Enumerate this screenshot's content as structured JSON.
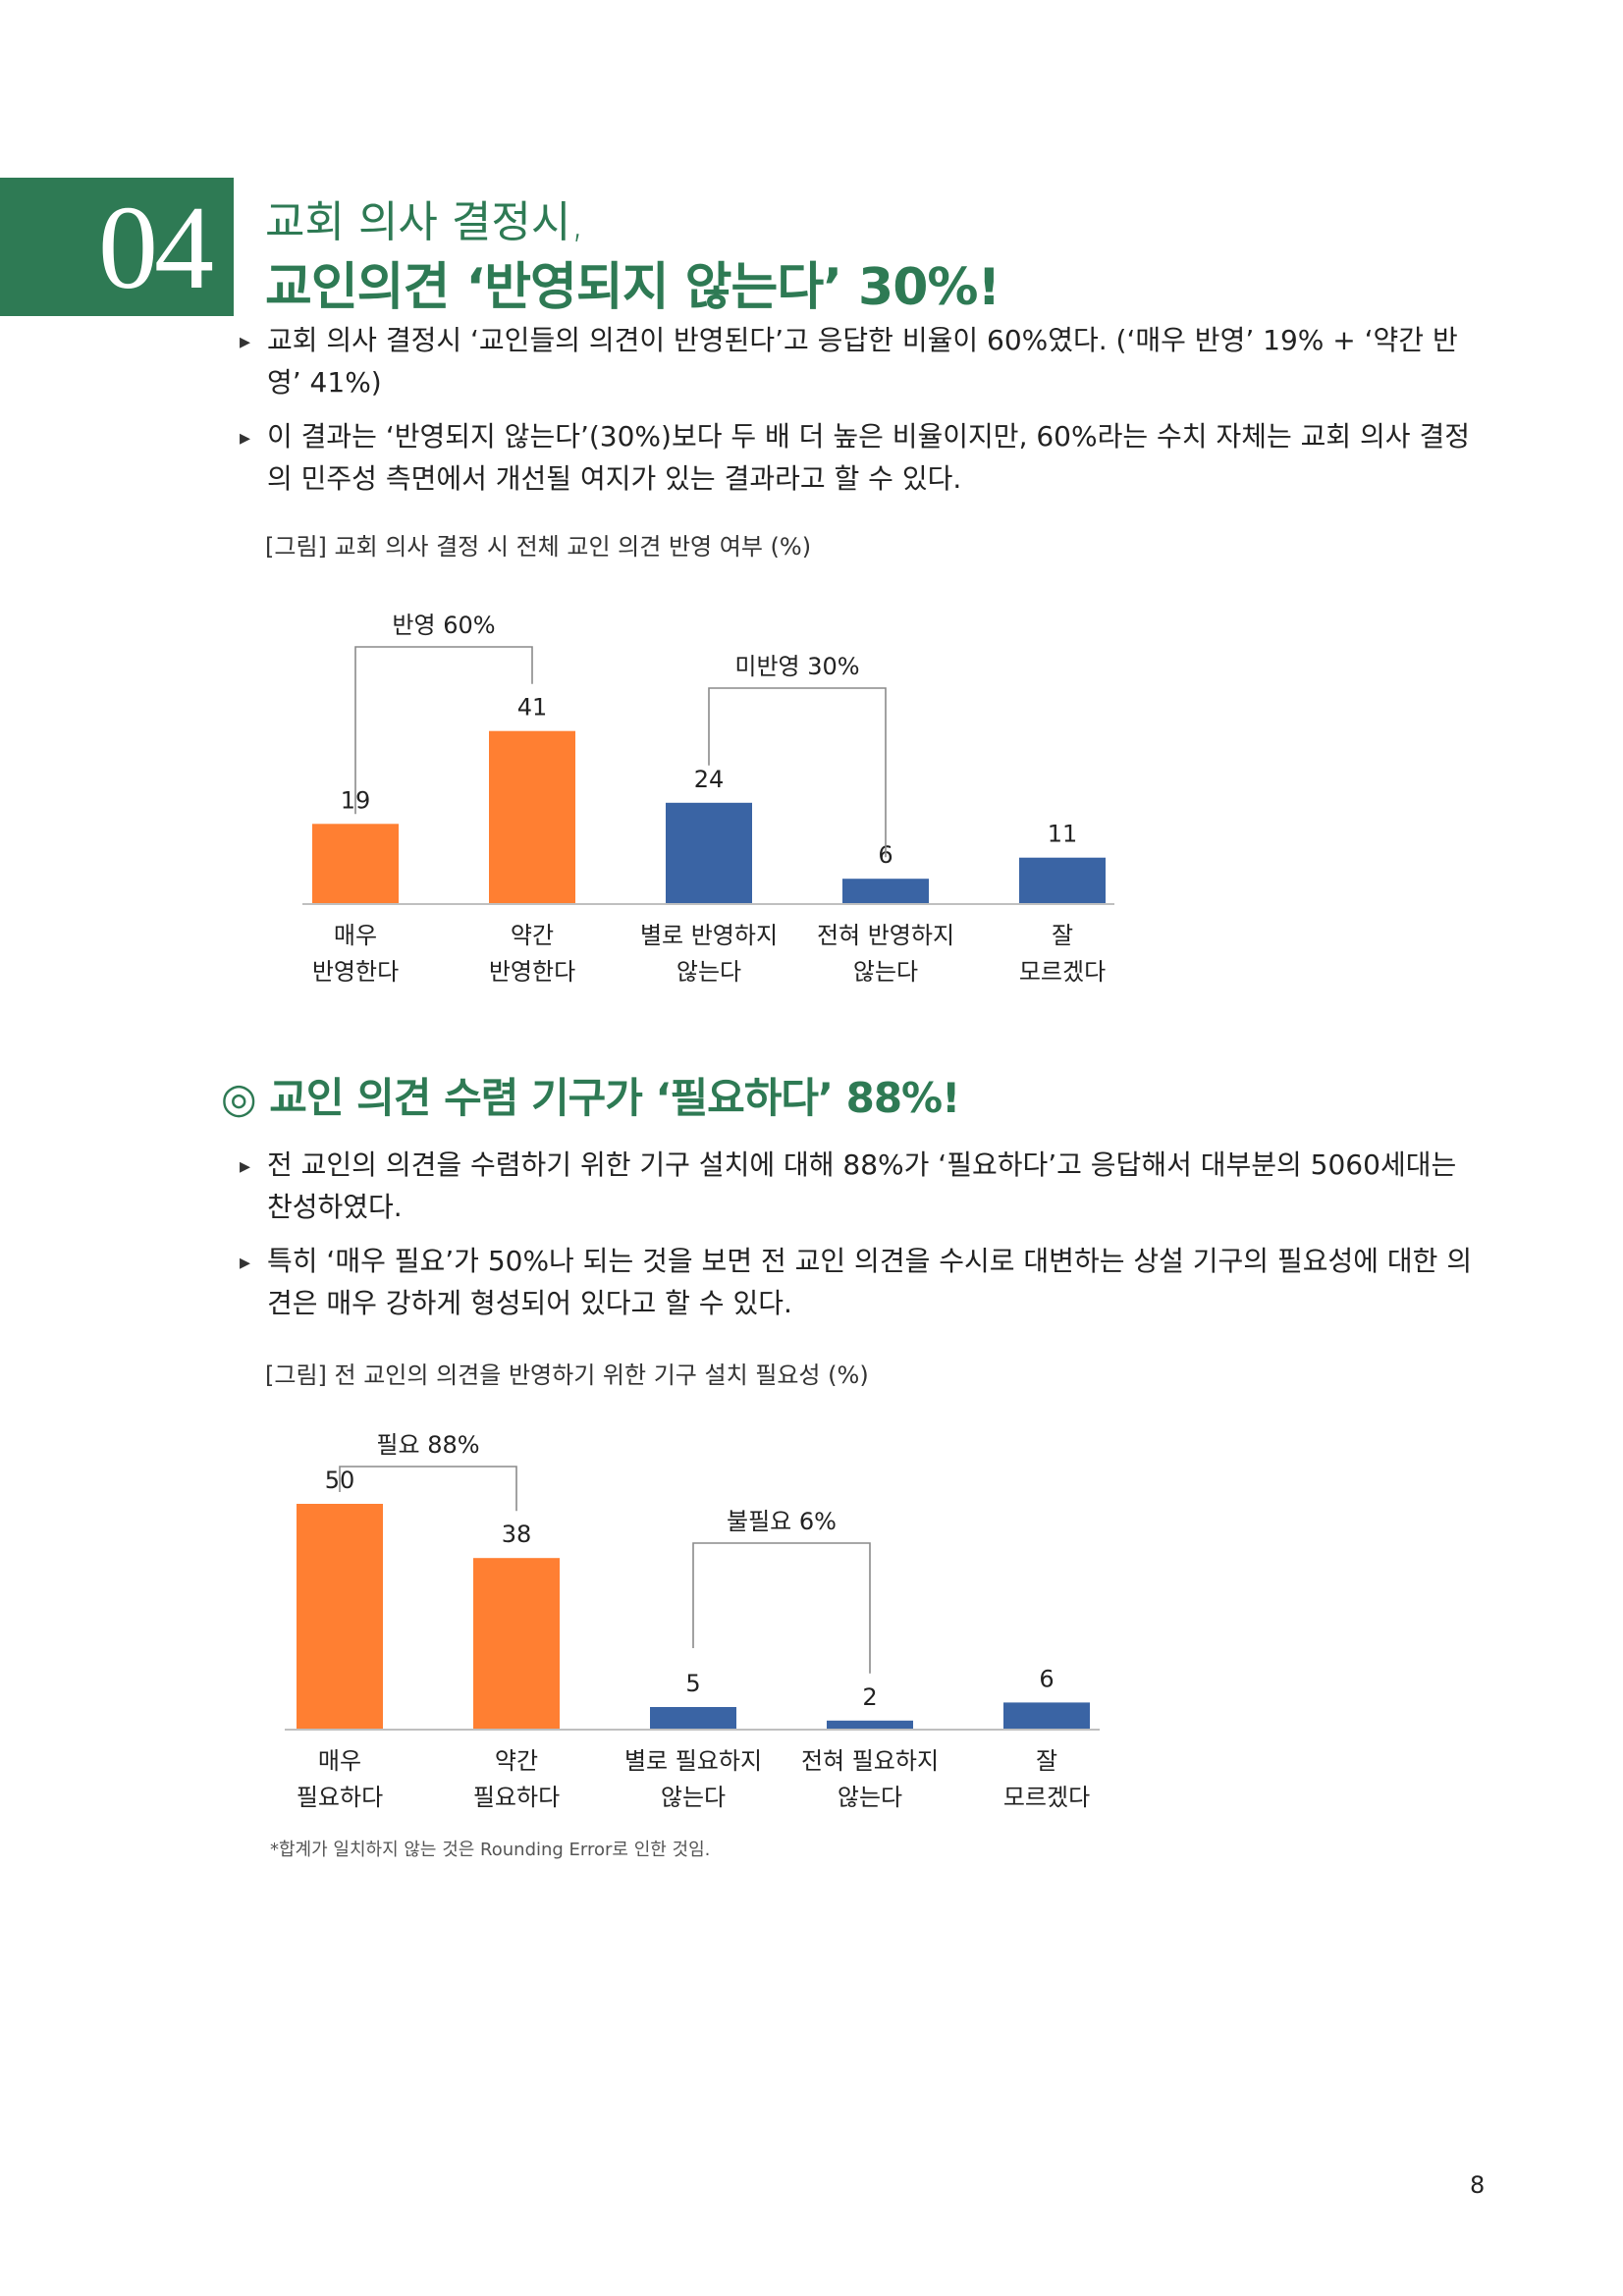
{
  "section": {
    "number": "04",
    "title_line1": "교회 의사 결정시,",
    "title_line2": "교인의견 ‘반영되지 않는다’ 30%!"
  },
  "para1": [
    "교회 의사 결정시 ‘교인들의 의견이 반영된다’고 응답한 비율이 60%였다. (‘매우 반영’ 19% + ‘약간 반영’ 41%)",
    "이 결과는 ‘반영되지 않는다’(30%)보다 두 배 더 높은 비율이지만, 60%라는 수치 자체는 교회 의사 결정의 민주성 측면에서 개선될 여지가 있는 결과라고 할 수 있다."
  ],
  "subheading": "◎ 교인 의견 수렴 기구가 ‘필요하다’ 88%!",
  "para2": [
    "전 교인의 의견을 수렴하기 위한 기구 설치에 대해 88%가 ‘필요하다’고 응답해서 대부분의 5060세대는 찬성하였다.",
    "특히 ‘매우 필요’가 50%나 되는 것을 보면 전 교인 의견을 수시로 대변하는 상설 기구의 필요성에 대한 의견은 매우 강하게 형성되어 있다고 할 수 있다."
  ],
  "bullet_glyph": "▸",
  "footnote": "*합계가 일치하지 않는 것은 Rounding Error로 인한 것임.",
  "page_number": "8",
  "colors": {
    "orange": "#ff7f32",
    "blue": "#3a64a4",
    "green": "#2e7a54"
  },
  "chart_data": [
    {
      "type": "bar",
      "title": "[그림] 교회 의사 결정 시 전체 교인 의견 반영 여부 (%)",
      "categories": [
        [
          "매우",
          "반영한다"
        ],
        [
          "약간",
          "반영한다"
        ],
        [
          "별로 반영하지",
          "않는다"
        ],
        [
          "전혀 반영하지",
          "않는다"
        ],
        [
          "잘",
          "모르겠다"
        ]
      ],
      "values": [
        19,
        41,
        24,
        6,
        11
      ],
      "bar_colors": [
        "orange",
        "orange",
        "blue",
        "blue",
        "blue"
      ],
      "ylim": [
        0,
        50
      ],
      "groups": [
        {
          "label": "반영 60%",
          "from": 0,
          "to": 1
        },
        {
          "label": "미반영 30%",
          "from": 2,
          "to": 3
        }
      ]
    },
    {
      "type": "bar",
      "title": "[그림] 전 교인의 의견을 반영하기 위한 기구 설치 필요성 (%)",
      "categories": [
        [
          "매우",
          "필요하다"
        ],
        [
          "약간",
          "필요하다"
        ],
        [
          "별로 필요하지",
          "않는다"
        ],
        [
          "전혀 필요하지",
          "않는다"
        ],
        [
          "잘",
          "모르겠다"
        ]
      ],
      "values": [
        50,
        38,
        5,
        2,
        6
      ],
      "bar_colors": [
        "orange",
        "orange",
        "blue",
        "blue",
        "blue"
      ],
      "ylim": [
        0,
        50
      ],
      "groups": [
        {
          "label": "필요 88%",
          "from": 0,
          "to": 1
        },
        {
          "label": "불필요 6%",
          "from": 2,
          "to": 3
        }
      ]
    }
  ]
}
